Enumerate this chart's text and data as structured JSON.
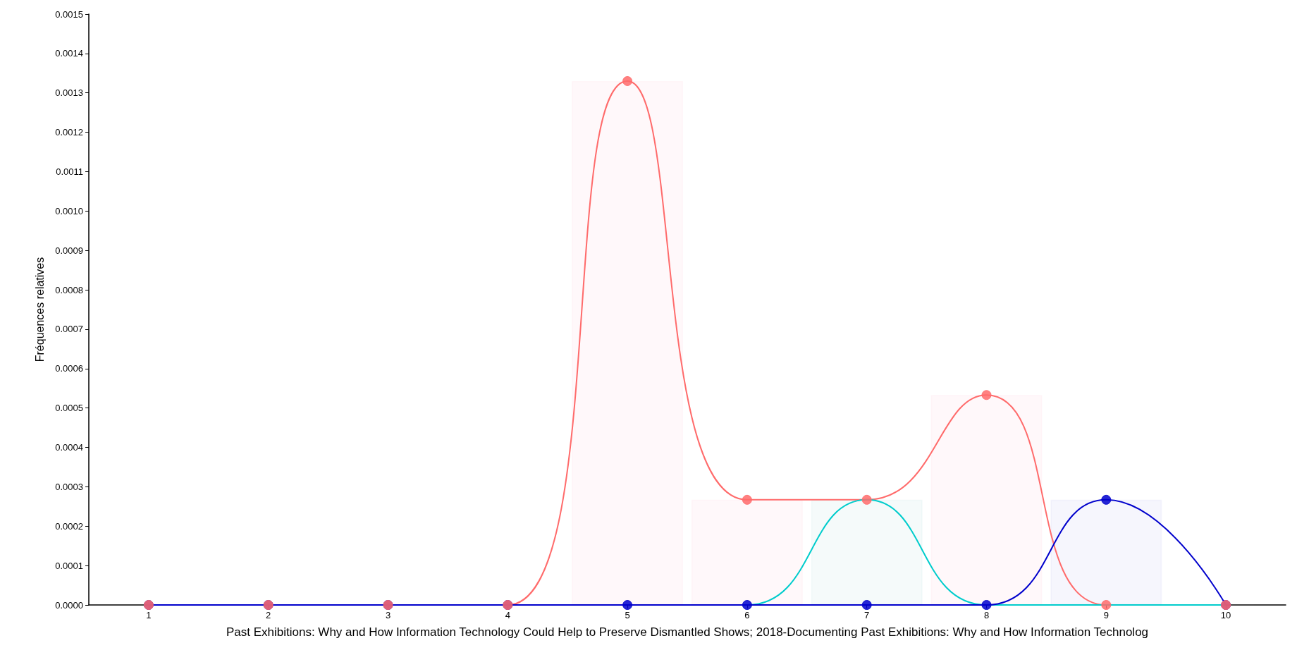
{
  "chart_data": {
    "type": "line",
    "xlabel": "Past Exhibitions: Why and How Information Technology Could Help to Preserve Dismantled Shows; 2018-Documenting Past Exhibitions: Why and How Information Technolog",
    "ylabel": "Fréquences relatives",
    "x": [
      1,
      2,
      3,
      4,
      5,
      6,
      7,
      8,
      9,
      10
    ],
    "series": [
      {
        "type": "bar",
        "colors": [
          null,
          null,
          null,
          null,
          "#ffe4ea",
          "#ffe4ea",
          "#d8eaea",
          "#ffe4ea",
          "#dcdcf8",
          null
        ],
        "values": [
          null,
          null,
          null,
          null,
          0.00133,
          0.000267,
          0.000267,
          0.000533,
          0.000267,
          null
        ]
      },
      {
        "color": "#ff6b6b",
        "marker": "circle",
        "values": [
          0,
          0,
          0,
          0,
          0.00133,
          0.000267,
          0.000267,
          0.000533,
          0,
          0
        ]
      },
      {
        "color": "#00cccc",
        "marker": "none",
        "values": [
          null,
          null,
          null,
          0,
          0,
          0,
          0.000267,
          0,
          0,
          0
        ]
      },
      {
        "color": "#0000cc",
        "marker": "circle",
        "values": [
          0,
          0,
          0,
          0,
          0,
          0,
          0,
          0,
          0.000267,
          0
        ]
      }
    ],
    "xlim": [
      0.5,
      10.5
    ],
    "xticks": [
      1,
      2,
      3,
      4,
      5,
      6,
      7,
      8,
      9,
      10
    ],
    "ylim": [
      0,
      0.0015
    ],
    "yticks": [
      {
        "value": 0,
        "label": "0.0000"
      },
      {
        "value": 0.0001,
        "label": "0.0001"
      },
      {
        "value": 0.0002,
        "label": "0.0002"
      },
      {
        "value": 0.0003,
        "label": "0.0003"
      },
      {
        "value": 0.0004,
        "label": "0.0004"
      },
      {
        "value": 0.0005,
        "label": "0.0005"
      },
      {
        "value": 0.0006,
        "label": "0.0006"
      },
      {
        "value": 0.0007,
        "label": "0.0007"
      },
      {
        "value": 0.0008,
        "label": "0.0008"
      },
      {
        "value": 0.0009,
        "label": "0.0009"
      },
      {
        "value": 0.001,
        "label": "0.0010"
      },
      {
        "value": 0.0011,
        "label": "0.0011"
      },
      {
        "value": 0.0012,
        "label": "0.0012"
      },
      {
        "value": 0.0013,
        "label": "0.0013"
      },
      {
        "value": 0.0014,
        "label": "0.0014"
      },
      {
        "value": 0.0015,
        "label": "0.0015"
      }
    ],
    "grid": false
  }
}
